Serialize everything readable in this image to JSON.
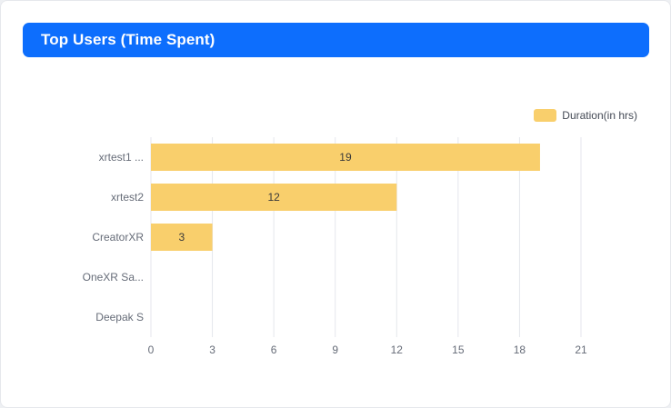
{
  "header": {
    "title": "Top Users (Time Spent)"
  },
  "colors": {
    "header_bg": "#0d6efd",
    "bar": "#f9cf6c",
    "grid": "#e4e6ec"
  },
  "chart_data": {
    "type": "bar",
    "orientation": "horizontal",
    "title": "",
    "categories": [
      "xrtest1 ...",
      "xrtest2",
      "CreatorXR",
      "OneXR Sa...",
      "Deepak S"
    ],
    "series": [
      {
        "name": "Duration(in hrs)",
        "values": [
          19,
          12,
          3,
          0,
          0
        ]
      }
    ],
    "data_labels": [
      "19",
      "12",
      "3",
      "",
      ""
    ],
    "x_ticks": [
      "0",
      "3",
      "6",
      "9",
      "12",
      "15",
      "18",
      "21"
    ],
    "xlim": [
      0,
      21
    ],
    "grid": true,
    "legend_position": "top-right"
  }
}
